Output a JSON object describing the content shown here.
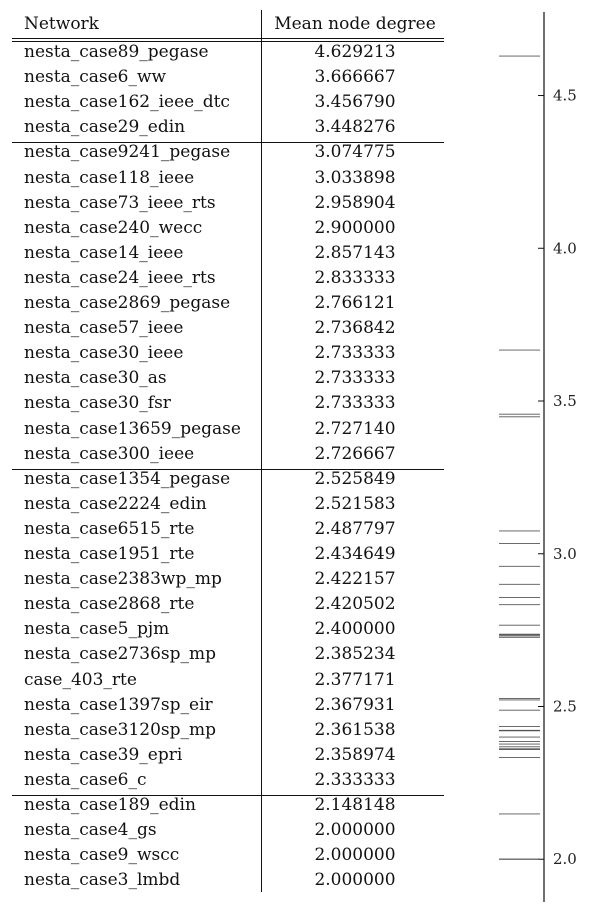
{
  "table": {
    "headers": {
      "network": "Network",
      "degree": "Mean node degree"
    },
    "groups": [
      [
        {
          "network": "nesta_case89_pegase",
          "degree": "4.629213"
        },
        {
          "network": "nesta_case6_ww",
          "degree": "3.666667"
        },
        {
          "network": "nesta_case162_ieee_dtc",
          "degree": "3.456790"
        },
        {
          "network": "nesta_case29_edin",
          "degree": "3.448276"
        }
      ],
      [
        {
          "network": "nesta_case9241_pegase",
          "degree": "3.074775"
        },
        {
          "network": "nesta_case118_ieee",
          "degree": "3.033898"
        },
        {
          "network": "nesta_case73_ieee_rts",
          "degree": "2.958904"
        },
        {
          "network": "nesta_case240_wecc",
          "degree": "2.900000"
        },
        {
          "network": "nesta_case14_ieee",
          "degree": "2.857143"
        },
        {
          "network": "nesta_case24_ieee_rts",
          "degree": "2.833333"
        },
        {
          "network": "nesta_case2869_pegase",
          "degree": "2.766121"
        },
        {
          "network": "nesta_case57_ieee",
          "degree": "2.736842"
        },
        {
          "network": "nesta_case30_ieee",
          "degree": "2.733333"
        },
        {
          "network": "nesta_case30_as",
          "degree": "2.733333"
        },
        {
          "network": "nesta_case30_fsr",
          "degree": "2.733333"
        },
        {
          "network": "nesta_case13659_pegase",
          "degree": "2.727140"
        },
        {
          "network": "nesta_case300_ieee",
          "degree": "2.726667"
        }
      ],
      [
        {
          "network": "nesta_case1354_pegase",
          "degree": "2.525849"
        },
        {
          "network": "nesta_case2224_edin",
          "degree": "2.521583"
        },
        {
          "network": "nesta_case6515_rte",
          "degree": "2.487797"
        },
        {
          "network": "nesta_case1951_rte",
          "degree": "2.434649"
        },
        {
          "network": "nesta_case2383wp_mp",
          "degree": "2.422157"
        },
        {
          "network": "nesta_case2868_rte",
          "degree": "2.420502"
        },
        {
          "network": "nesta_case5_pjm",
          "degree": "2.400000"
        },
        {
          "network": "nesta_case2736sp_mp",
          "degree": "2.385234"
        },
        {
          "network": "case_403_rte",
          "degree": "2.377171"
        },
        {
          "network": "nesta_case1397sp_eir",
          "degree": "2.367931"
        },
        {
          "network": "nesta_case3120sp_mp",
          "degree": "2.361538"
        },
        {
          "network": "nesta_case39_epri",
          "degree": "2.358974"
        },
        {
          "network": "nesta_case6_c",
          "degree": "2.333333"
        }
      ],
      [
        {
          "network": "nesta_case189_edin",
          "degree": "2.148148"
        },
        {
          "network": "nesta_case4_gs",
          "degree": "2.000000"
        },
        {
          "network": "nesta_case9_wscc",
          "degree": "2.000000"
        },
        {
          "network": "nesta_case3_lmbd",
          "degree": "2.000000"
        }
      ]
    ]
  },
  "scale": {
    "range": [
      1.86,
      4.78
    ],
    "ticks": [
      "2.0",
      "2.5",
      "3.0",
      "3.5",
      "4.0",
      "4.5"
    ]
  }
}
